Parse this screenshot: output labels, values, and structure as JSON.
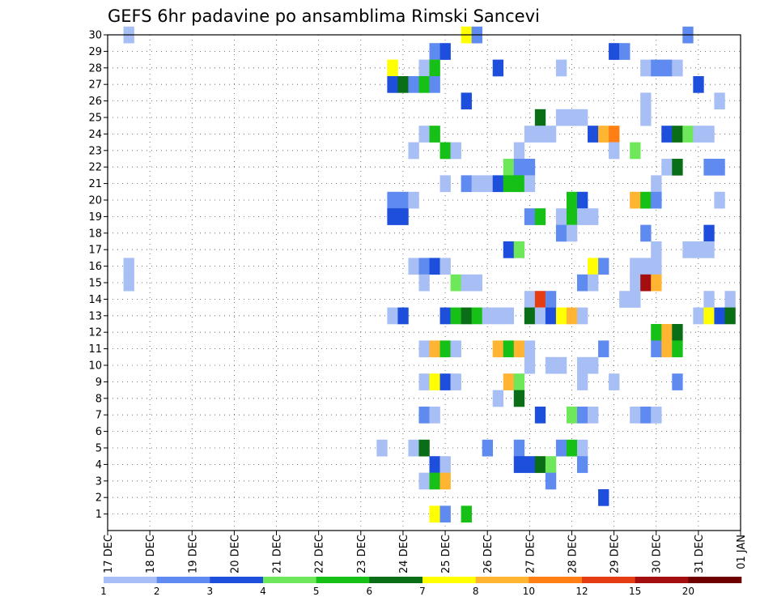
{
  "chart_data": {
    "type": "heatmap",
    "title": "GEFS 6hr padavine po ansamblima Rimski Sancevi",
    "xlabel": "",
    "ylabel": "",
    "x_tick_labels": [
      "17 DEC",
      "18 DEC",
      "19 DEC",
      "20 DEC",
      "21 DEC",
      "22 DEC",
      "23 DEC",
      "24 DEC",
      "25 DEC",
      "26 DEC",
      "27 DEC",
      "28 DEC",
      "29 DEC",
      "30 DEC",
      "31 DEC",
      "01 JAN"
    ],
    "y_tick_labels": [
      1,
      2,
      3,
      4,
      5,
      6,
      7,
      8,
      9,
      10,
      11,
      12,
      13,
      14,
      15,
      16,
      17,
      18,
      19,
      20,
      21,
      22,
      23,
      24,
      25,
      26,
      27,
      28,
      29,
      30
    ],
    "x_range_days": [
      0,
      15
    ],
    "y_range": [
      0,
      30
    ],
    "grid": "dotted",
    "colorbar": {
      "levels": [
        1,
        2,
        3,
        4,
        5,
        6,
        7,
        8,
        10,
        12,
        15,
        20
      ],
      "colors": [
        "#a8bff5",
        "#5f8bf0",
        "#1e4fdc",
        "#6ee85a",
        "#16c016",
        "#0a6e16",
        "#ffff00",
        "#ffb432",
        "#ff7f14",
        "#e63c14",
        "#a50e0e",
        "#6e0000"
      ]
    },
    "color_legend": [
      "1: 1-2 mm",
      "2: 2-3 mm",
      "3: 3-4 mm",
      "4: 4-5 mm",
      "5: 5-6 mm",
      "6: 6-7 mm",
      "7: 7-8 mm",
      "8: 8-10 mm",
      "9: 10-12 mm",
      "10: 12-15 mm",
      "11: 15-20 mm",
      "12: >20 mm"
    ],
    "cells": [
      [
        0.5,
        30,
        1
      ],
      [
        8.5,
        30,
        7
      ],
      [
        8.75,
        30,
        2
      ],
      [
        13.75,
        30,
        2
      ],
      [
        7.75,
        29,
        2
      ],
      [
        8.0,
        29,
        3
      ],
      [
        12.0,
        29,
        3
      ],
      [
        12.25,
        29,
        2
      ],
      [
        6.75,
        28,
        7
      ],
      [
        7.5,
        28,
        1
      ],
      [
        7.75,
        28,
        5
      ],
      [
        9.25,
        28,
        3
      ],
      [
        10.75,
        28,
        1
      ],
      [
        12.75,
        28,
        1
      ],
      [
        13.0,
        28,
        2
      ],
      [
        13.25,
        28,
        2
      ],
      [
        13.5,
        28,
        1
      ],
      [
        6.75,
        27,
        3
      ],
      [
        7.0,
        27,
        6
      ],
      [
        7.25,
        27,
        2
      ],
      [
        7.5,
        27,
        5
      ],
      [
        7.75,
        27,
        2
      ],
      [
        14.0,
        27,
        3
      ],
      [
        8.5,
        26,
        3
      ],
      [
        12.75,
        26,
        1
      ],
      [
        14.5,
        26,
        1
      ],
      [
        10.25,
        25,
        6
      ],
      [
        10.75,
        25,
        1
      ],
      [
        11.0,
        25,
        1
      ],
      [
        11.25,
        25,
        1
      ],
      [
        12.75,
        25,
        1
      ],
      [
        7.5,
        24,
        1
      ],
      [
        7.75,
        24,
        5
      ],
      [
        10.0,
        24,
        1
      ],
      [
        10.25,
        24,
        1
      ],
      [
        10.5,
        24,
        1
      ],
      [
        11.5,
        24,
        3
      ],
      [
        11.75,
        24,
        8
      ],
      [
        12.0,
        24,
        9
      ],
      [
        13.25,
        24,
        3
      ],
      [
        13.5,
        24,
        6
      ],
      [
        13.75,
        24,
        4
      ],
      [
        14.0,
        24,
        1
      ],
      [
        14.25,
        24,
        1
      ],
      [
        7.25,
        23,
        1
      ],
      [
        8.0,
        23,
        5
      ],
      [
        8.25,
        23,
        1
      ],
      [
        9.75,
        23,
        1
      ],
      [
        12.0,
        23,
        1
      ],
      [
        12.5,
        23,
        4
      ],
      [
        9.5,
        22,
        4
      ],
      [
        9.75,
        22,
        2
      ],
      [
        10.0,
        22,
        2
      ],
      [
        13.25,
        22,
        1
      ],
      [
        13.5,
        22,
        6
      ],
      [
        14.25,
        22,
        2
      ],
      [
        14.5,
        22,
        2
      ],
      [
        8.0,
        21,
        1
      ],
      [
        8.5,
        21,
        2
      ],
      [
        8.75,
        21,
        1
      ],
      [
        9.0,
        21,
        1
      ],
      [
        9.25,
        21,
        3
      ],
      [
        9.5,
        21,
        5
      ],
      [
        9.75,
        21,
        5
      ],
      [
        10.0,
        21,
        1
      ],
      [
        13.0,
        21,
        1
      ],
      [
        6.75,
        20,
        2
      ],
      [
        7.0,
        20,
        2
      ],
      [
        7.25,
        20,
        1
      ],
      [
        11.0,
        20,
        5
      ],
      [
        11.25,
        20,
        3
      ],
      [
        12.5,
        20,
        8
      ],
      [
        12.75,
        20,
        5
      ],
      [
        13.0,
        20,
        2
      ],
      [
        14.5,
        20,
        1
      ],
      [
        6.75,
        19,
        3
      ],
      [
        7.0,
        19,
        3
      ],
      [
        10.0,
        19,
        2
      ],
      [
        10.25,
        19,
        5
      ],
      [
        10.75,
        19,
        1
      ],
      [
        11.0,
        19,
        5
      ],
      [
        11.25,
        19,
        1
      ],
      [
        11.5,
        19,
        1
      ],
      [
        10.75,
        18,
        2
      ],
      [
        11.0,
        18,
        1
      ],
      [
        12.75,
        18,
        2
      ],
      [
        14.25,
        18,
        3
      ],
      [
        9.5,
        17,
        3
      ],
      [
        9.75,
        17,
        4
      ],
      [
        13.0,
        17,
        1
      ],
      [
        13.75,
        17,
        1
      ],
      [
        14.0,
        17,
        1
      ],
      [
        14.25,
        17,
        1
      ],
      [
        0.5,
        16,
        1
      ],
      [
        7.25,
        16,
        1
      ],
      [
        7.5,
        16,
        2
      ],
      [
        7.75,
        16,
        3
      ],
      [
        8.0,
        16,
        1
      ],
      [
        11.5,
        16,
        7
      ],
      [
        11.75,
        16,
        2
      ],
      [
        12.5,
        16,
        1
      ],
      [
        12.75,
        16,
        1
      ],
      [
        13.0,
        16,
        1
      ],
      [
        0.5,
        15,
        1
      ],
      [
        7.5,
        15,
        1
      ],
      [
        8.25,
        15,
        4
      ],
      [
        8.5,
        15,
        1
      ],
      [
        8.75,
        15,
        1
      ],
      [
        11.25,
        15,
        2
      ],
      [
        11.5,
        15,
        1
      ],
      [
        12.5,
        15,
        1
      ],
      [
        12.75,
        15,
        11
      ],
      [
        13.0,
        15,
        8
      ],
      [
        10.0,
        14,
        1
      ],
      [
        10.25,
        14,
        10
      ],
      [
        10.5,
        14,
        2
      ],
      [
        12.25,
        14,
        1
      ],
      [
        12.5,
        14,
        1
      ],
      [
        14.25,
        14,
        1
      ],
      [
        14.75,
        14,
        1
      ],
      [
        6.75,
        13,
        1
      ],
      [
        7.0,
        13,
        3
      ],
      [
        8.0,
        13,
        3
      ],
      [
        8.25,
        13,
        5
      ],
      [
        8.5,
        13,
        6
      ],
      [
        8.75,
        13,
        5
      ],
      [
        9.0,
        13,
        1
      ],
      [
        9.25,
        13,
        1
      ],
      [
        9.5,
        13,
        1
      ],
      [
        10.0,
        13,
        6
      ],
      [
        10.25,
        13,
        1
      ],
      [
        10.5,
        13,
        3
      ],
      [
        10.75,
        13,
        7
      ],
      [
        11.0,
        13,
        8
      ],
      [
        11.25,
        13,
        1
      ],
      [
        14.0,
        13,
        1
      ],
      [
        14.25,
        13,
        7
      ],
      [
        14.5,
        13,
        3
      ],
      [
        14.75,
        13,
        6
      ],
      [
        13.0,
        12,
        5
      ],
      [
        13.25,
        12,
        8
      ],
      [
        13.5,
        12,
        6
      ],
      [
        7.5,
        11,
        1
      ],
      [
        7.75,
        11,
        8
      ],
      [
        8.0,
        11,
        5
      ],
      [
        8.25,
        11,
        1
      ],
      [
        9.25,
        11,
        8
      ],
      [
        9.5,
        11,
        5
      ],
      [
        9.75,
        11,
        8
      ],
      [
        10.0,
        11,
        1
      ],
      [
        11.75,
        11,
        2
      ],
      [
        13.0,
        11,
        2
      ],
      [
        13.25,
        11,
        8
      ],
      [
        13.5,
        11,
        5
      ],
      [
        10.0,
        10,
        1
      ],
      [
        10.5,
        10,
        1
      ],
      [
        10.75,
        10,
        1
      ],
      [
        11.25,
        10,
        1
      ],
      [
        11.5,
        10,
        1
      ],
      [
        7.5,
        9,
        1
      ],
      [
        7.75,
        9,
        7
      ],
      [
        8.0,
        9,
        3
      ],
      [
        8.25,
        9,
        1
      ],
      [
        9.5,
        9,
        8
      ],
      [
        9.75,
        9,
        4
      ],
      [
        11.25,
        9,
        1
      ],
      [
        12.0,
        9,
        1
      ],
      [
        13.5,
        9,
        2
      ],
      [
        9.25,
        8,
        1
      ],
      [
        9.75,
        8,
        6
      ],
      [
        7.5,
        7,
        2
      ],
      [
        7.75,
        7,
        1
      ],
      [
        10.25,
        7,
        3
      ],
      [
        11.0,
        7,
        4
      ],
      [
        11.25,
        7,
        2
      ],
      [
        11.5,
        7,
        1
      ],
      [
        12.5,
        7,
        1
      ],
      [
        12.75,
        7,
        2
      ],
      [
        13.0,
        7,
        1
      ],
      [
        6.5,
        5,
        1
      ],
      [
        7.25,
        5,
        1
      ],
      [
        7.5,
        5,
        6
      ],
      [
        9.0,
        5,
        2
      ],
      [
        9.75,
        5,
        2
      ],
      [
        10.75,
        5,
        2
      ],
      [
        11.0,
        5,
        5
      ],
      [
        11.25,
        5,
        1
      ],
      [
        7.75,
        4,
        3
      ],
      [
        8.0,
        4,
        1
      ],
      [
        9.75,
        4,
        3
      ],
      [
        10.0,
        4,
        3
      ],
      [
        10.25,
        4,
        6
      ],
      [
        10.5,
        4,
        4
      ],
      [
        11.25,
        4,
        2
      ],
      [
        7.5,
        3,
        1
      ],
      [
        7.75,
        3,
        5
      ],
      [
        8.0,
        3,
        8
      ],
      [
        10.5,
        3,
        2
      ],
      [
        11.75,
        2,
        3
      ],
      [
        7.75,
        1,
        7
      ],
      [
        8.0,
        1,
        2
      ],
      [
        8.5,
        1,
        5
      ]
    ]
  }
}
